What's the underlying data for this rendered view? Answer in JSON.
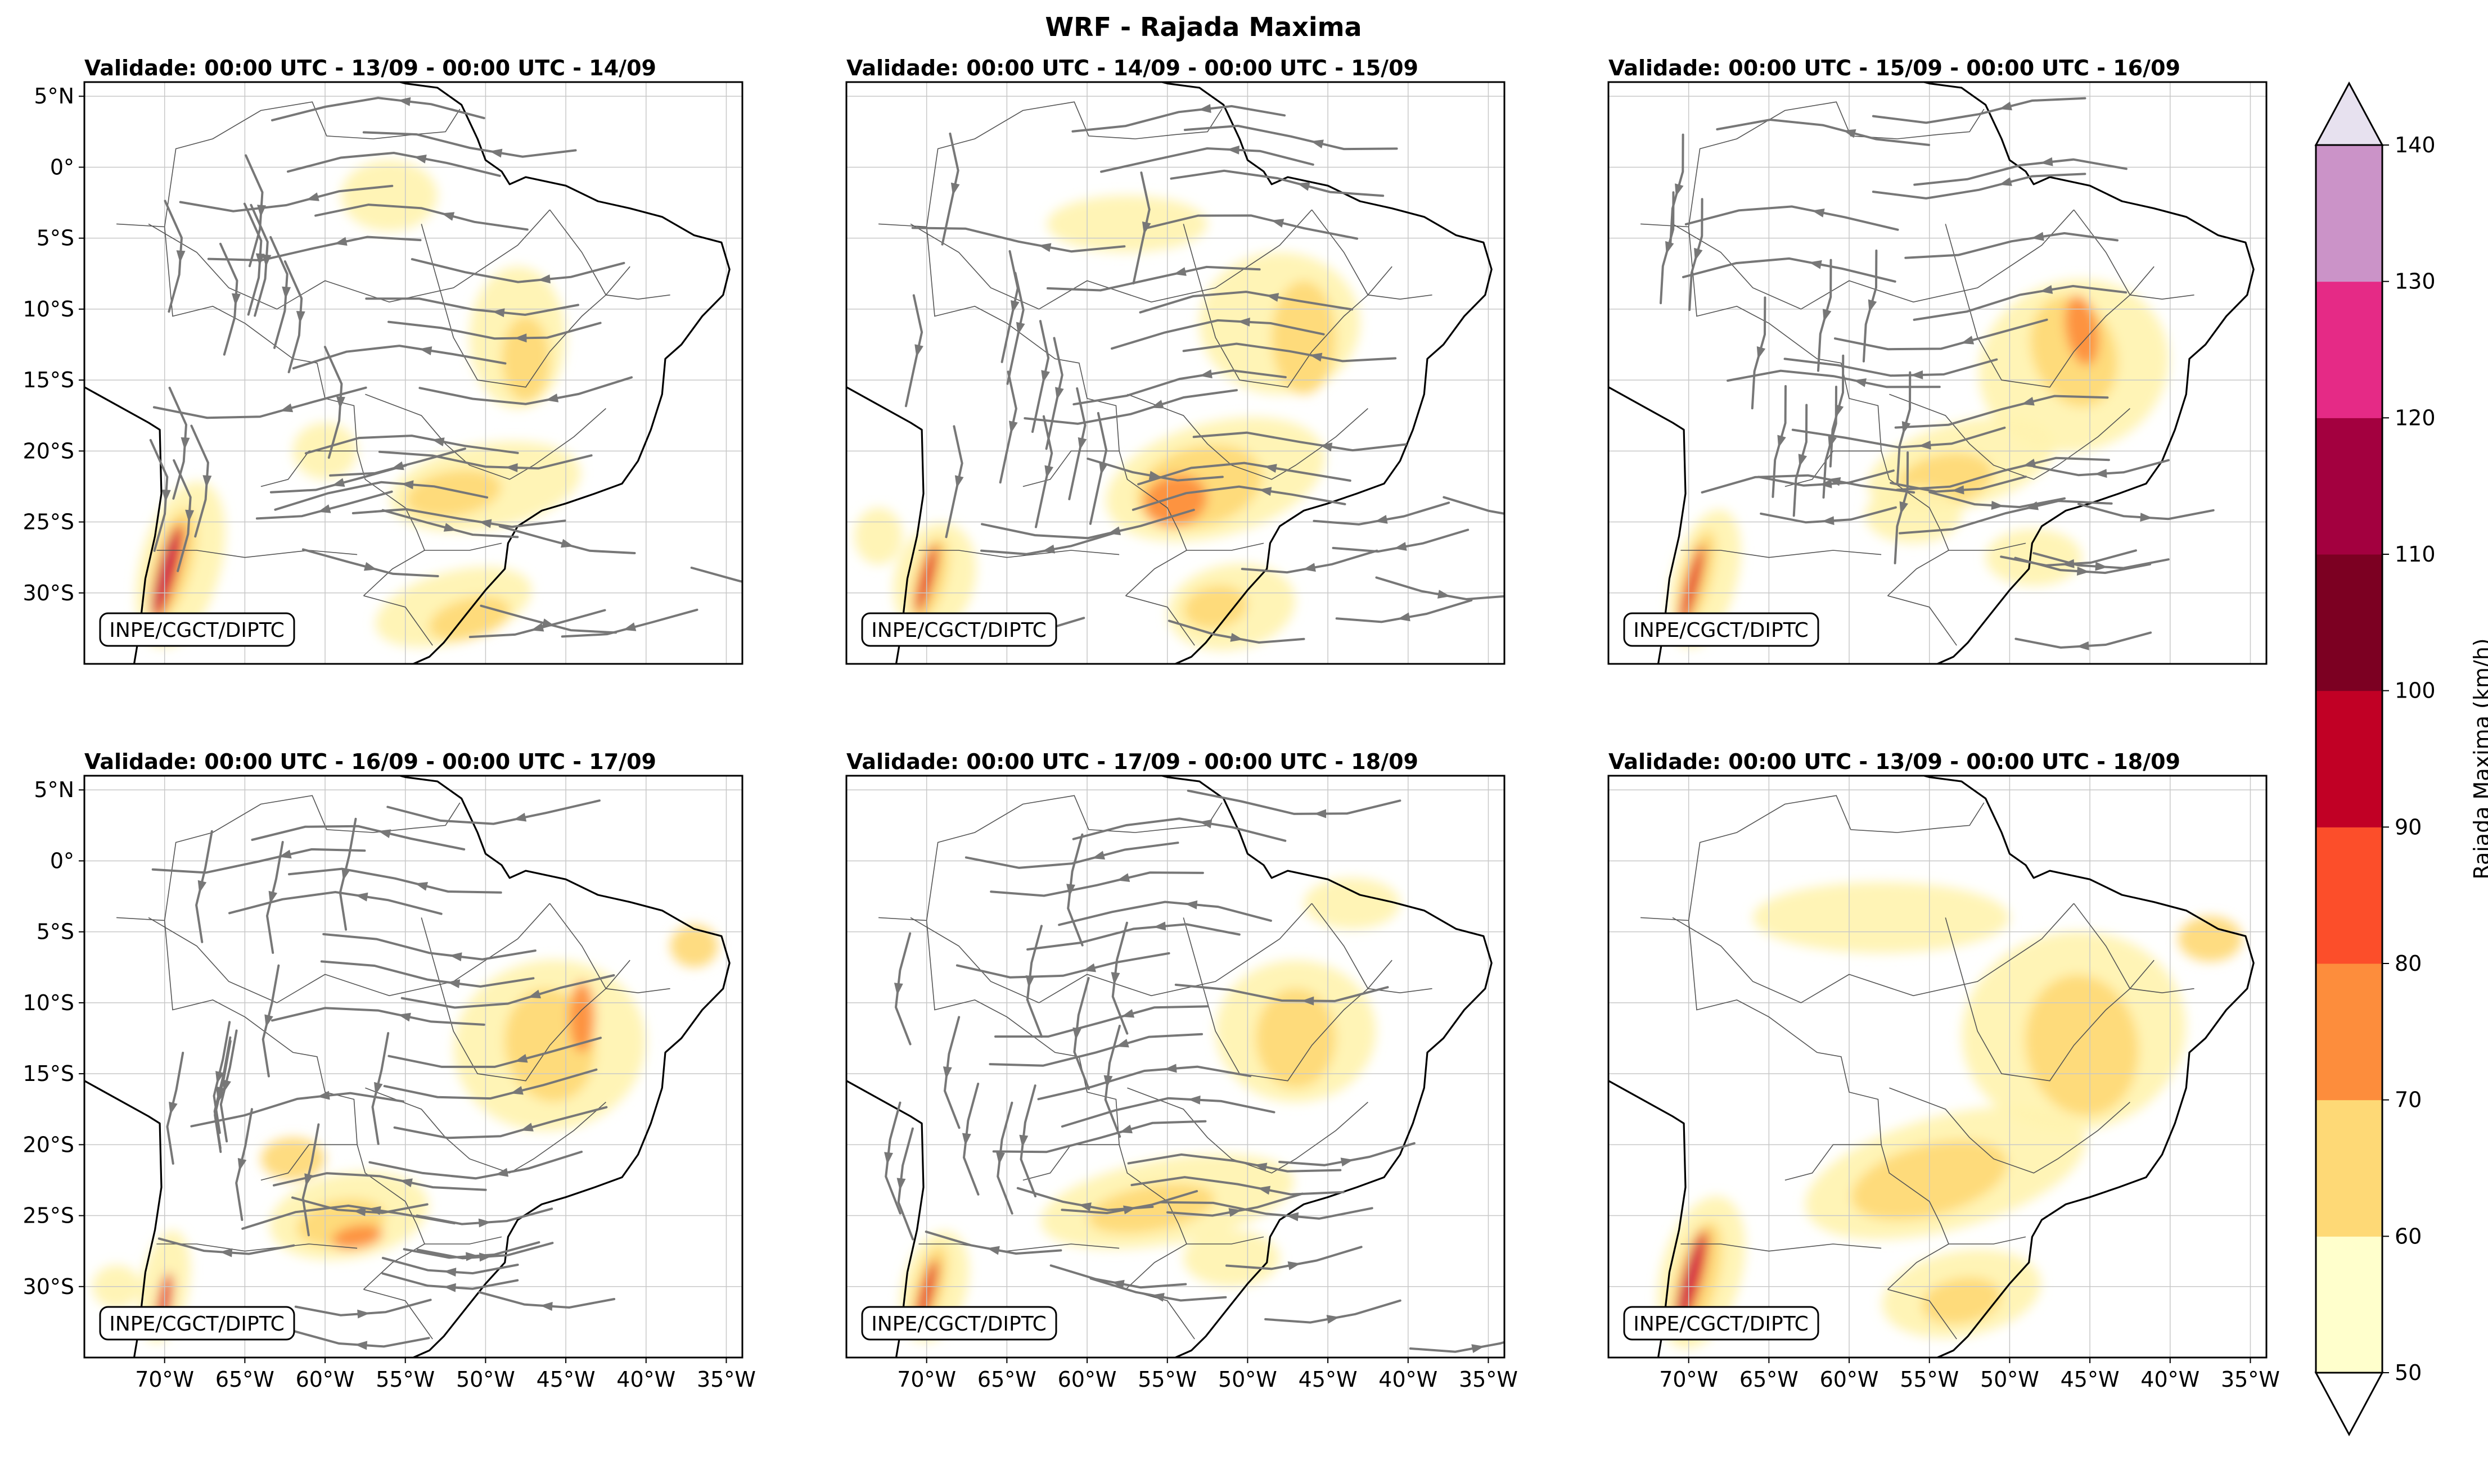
{
  "figure": {
    "title": "WRF - Rajada Maxima",
    "credit": "INPE/CGCT/DIPTC"
  },
  "panels": [
    {
      "title": "Validade: 00:00 UTC - 13/09 - 00:00 UTC - 14/09",
      "streamlines": true
    },
    {
      "title": "Validade: 00:00 UTC - 14/09 - 00:00 UTC - 15/09",
      "streamlines": true
    },
    {
      "title": "Validade: 00:00 UTC - 15/09 - 00:00 UTC - 16/09",
      "streamlines": true
    },
    {
      "title": "Validade: 00:00 UTC - 16/09 - 00:00 UTC - 17/09",
      "streamlines": true
    },
    {
      "title": "Validade: 00:00 UTC - 17/09 - 00:00 UTC - 18/09",
      "streamlines": true
    },
    {
      "title": "Validade: 00:00 UTC - 13/09 - 00:00 UTC - 18/09",
      "streamlines": false
    }
  ],
  "axes": {
    "lat_labels": [
      "5°N",
      "0°",
      "5°S",
      "10°S",
      "15°S",
      "20°S",
      "25°S",
      "30°S"
    ],
    "lat_values": [
      5,
      0,
      -5,
      -10,
      -15,
      -20,
      -25,
      -30
    ],
    "lon_labels": [
      "70°W",
      "65°W",
      "60°W",
      "55°W",
      "50°W",
      "45°W",
      "40°W",
      "35°W"
    ],
    "lon_values": [
      -70,
      -65,
      -60,
      -55,
      -50,
      -45,
      -40,
      -35
    ],
    "lat_range": [
      -35,
      6
    ],
    "lon_range": [
      -75,
      -34
    ]
  },
  "colorbar": {
    "label": "Rajada Maxima (km/h)",
    "levels": [
      "50",
      "60",
      "70",
      "80",
      "90",
      "100",
      "110",
      "120",
      "130",
      "140"
    ],
    "colors": [
      "#ffffcc",
      "#ffeda0",
      "#fed976",
      "#feb24c",
      "#fd8d3c",
      "#fc4e2a",
      "#e31a1c",
      "#bd0026",
      "#800026",
      "#67001f",
      "#a30048",
      "#e7298a",
      "#c994c7",
      "#e7e1ef"
    ],
    "band_colors": [
      "#ffffcc",
      "#fed976",
      "#fd8d3c",
      "#fc4e2a",
      "#c10025",
      "#7c0022",
      "#a3003f",
      "#e52a86",
      "#cb93c8"
    ],
    "under_color": "#ffffff",
    "over_color": "#e7e1ef"
  },
  "map": {
    "gust_colors": {
      "light": "#fff3b0",
      "mid": "#fed976",
      "orange": "#fd8d3c",
      "red": "#e31a1c",
      "magenta": "#c2185b"
    }
  }
}
